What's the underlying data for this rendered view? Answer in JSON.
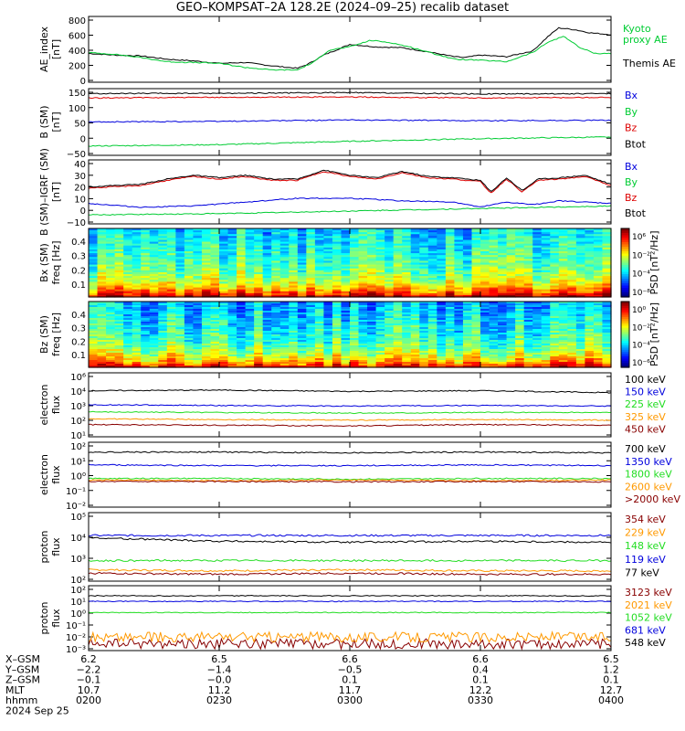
{
  "title": "GEO–KOMPSAT–2A 128.2E (2024–09–25) recalib dataset",
  "colors": {
    "black": "#000000",
    "red": "#dd0000",
    "green": "#00cc33",
    "blue": "#0000dd",
    "orange": "#ff9900",
    "darkred": "#880000",
    "bright_green": "#22dd22"
  },
  "chart_data": [
    {
      "id": "ae",
      "type": "line",
      "ylabel": [
        "AE_index",
        "[nT]"
      ],
      "ylim": [
        0,
        800
      ],
      "yticks": [
        "800",
        "600",
        "400",
        "200",
        "0"
      ],
      "series": [
        {
          "name": "Themis AE",
          "color": "black",
          "x": [
            0,
            0.05,
            0.1,
            0.15,
            0.2,
            0.25,
            0.3,
            0.35,
            0.4,
            0.42,
            0.45,
            0.5,
            0.55,
            0.6,
            0.65,
            0.7,
            0.72,
            0.75,
            0.8,
            0.85,
            0.88,
            0.9,
            0.93,
            0.96,
            1.0
          ],
          "values": [
            350,
            330,
            320,
            280,
            260,
            230,
            240,
            200,
            170,
            220,
            330,
            460,
            430,
            420,
            370,
            310,
            300,
            330,
            310,
            380,
            560,
            660,
            640,
            600,
            580
          ]
        },
        {
          "name": "Kyoto proxy AE",
          "color": "green",
          "x": [
            0,
            0.05,
            0.1,
            0.15,
            0.2,
            0.25,
            0.3,
            0.35,
            0.4,
            0.43,
            0.46,
            0.5,
            0.54,
            0.58,
            0.62,
            0.66,
            0.7,
            0.74,
            0.8,
            0.85,
            0.88,
            0.91,
            0.94,
            0.97,
            1.0
          ],
          "values": [
            360,
            340,
            300,
            250,
            240,
            230,
            180,
            150,
            150,
            240,
            390,
            430,
            510,
            480,
            420,
            350,
            280,
            270,
            250,
            360,
            490,
            560,
            420,
            350,
            350
          ]
        }
      ],
      "legend": [
        "Kyoto",
        "proxy AE",
        "Themis AE"
      ]
    },
    {
      "id": "b",
      "type": "line",
      "ylabel": [
        "B (SM)",
        "[nT]"
      ],
      "ylim": [
        -50,
        150
      ],
      "yticks": [
        "150",
        "100",
        "50",
        "0",
        "−50"
      ],
      "series": [
        {
          "name": "Bx",
          "color": "blue",
          "x": [
            0,
            0.25,
            0.5,
            0.75,
            1.0
          ],
          "values": [
            50,
            52,
            56,
            54,
            55
          ]
        },
        {
          "name": "By",
          "color": "green",
          "x": [
            0,
            0.25,
            0.5,
            0.75,
            1.0
          ],
          "values": [
            -22,
            -18,
            -8,
            0,
            5
          ]
        },
        {
          "name": "Bz",
          "color": "red",
          "x": [
            0,
            0.25,
            0.5,
            0.75,
            1.0
          ],
          "values": [
            122,
            124,
            125,
            122,
            124
          ]
        },
        {
          "name": "Btot",
          "color": "black",
          "x": [
            0,
            0.25,
            0.5,
            0.75,
            1.0
          ],
          "values": [
            135,
            136,
            138,
            134,
            135
          ]
        }
      ],
      "legend": [
        "Bx",
        "By",
        "Bz",
        "Btot"
      ]
    },
    {
      "id": "bd",
      "type": "line",
      "ylabel": [
        "B (SM)–IGRF (SM)",
        "[nT]"
      ],
      "ylim": [
        -10,
        40
      ],
      "yticks": [
        "40",
        "30",
        "20",
        "10",
        "0",
        "−10"
      ],
      "series": [
        {
          "name": "Bx",
          "color": "blue",
          "x": [
            0,
            0.1,
            0.2,
            0.3,
            0.4,
            0.5,
            0.6,
            0.7,
            0.75,
            0.8,
            0.85,
            0.9,
            1.0
          ],
          "values": [
            6,
            3,
            4,
            7,
            10,
            10,
            8,
            7,
            3,
            7,
            5,
            8,
            6
          ]
        },
        {
          "name": "By",
          "color": "green",
          "x": [
            0,
            0.25,
            0.5,
            0.75,
            1.0
          ],
          "values": [
            -3,
            -2,
            0,
            2,
            4
          ]
        },
        {
          "name": "Bz",
          "color": "red",
          "x": [
            0,
            0.05,
            0.1,
            0.15,
            0.2,
            0.25,
            0.3,
            0.35,
            0.4,
            0.45,
            0.5,
            0.55,
            0.6,
            0.65,
            0.7,
            0.75,
            0.77,
            0.8,
            0.83,
            0.86,
            0.9,
            0.95,
            1.0
          ],
          "values": [
            18,
            19,
            20,
            24,
            27,
            25,
            27,
            24,
            24,
            31,
            27,
            25,
            30,
            26,
            25,
            23,
            14,
            25,
            15,
            24,
            25,
            27,
            20
          ]
        },
        {
          "name": "Btot",
          "color": "black",
          "x": [
            0,
            0.05,
            0.1,
            0.15,
            0.2,
            0.25,
            0.3,
            0.35,
            0.4,
            0.45,
            0.5,
            0.55,
            0.6,
            0.65,
            0.7,
            0.75,
            0.77,
            0.8,
            0.83,
            0.86,
            0.9,
            0.95,
            1.0
          ],
          "values": [
            19,
            20,
            21,
            25,
            28,
            26,
            28,
            25,
            25,
            32,
            28,
            26,
            31,
            27,
            26,
            24,
            15,
            26,
            16,
            25,
            26,
            28,
            21
          ]
        }
      ],
      "legend": [
        "Bx",
        "By",
        "Bz",
        "Btot"
      ]
    },
    {
      "id": "bx_spec",
      "type": "heatmap",
      "ylabel": [
        "Bx (SM)",
        "freq [Hz]"
      ],
      "ylim": [
        0,
        0.5
      ],
      "yticks": [
        "0.4",
        "0.3",
        "0.2",
        "0.1"
      ],
      "colorbar": {
        "label": "PSD [nT²/Hz]",
        "ticks": [
          "10⁶",
          "10⁻²",
          "10⁻⁴",
          "10⁻⁸"
        ]
      }
    },
    {
      "id": "bz_spec",
      "type": "heatmap",
      "ylabel": [
        "Bz (SM)",
        "freq [Hz]"
      ],
      "ylim": [
        0,
        0.5
      ],
      "yticks": [
        "0.4",
        "0.3",
        "0.2",
        "0.1"
      ],
      "colorbar": {
        "label": "PSD [nT²/Hz]",
        "ticks": [
          "10⁰",
          "10⁻²",
          "10⁻⁴",
          "10⁻⁶"
        ]
      }
    },
    {
      "id": "ef1",
      "type": "line",
      "scale": "log",
      "ylabel": [
        "electron",
        "flux"
      ],
      "ylim_exp": [
        1,
        6
      ],
      "yticks": [
        "10⁶",
        "10⁴",
        "10³",
        "10²",
        "10¹"
      ],
      "series": [
        {
          "name": "100 keV",
          "color": "black",
          "x": [
            0,
            0.25,
            0.5,
            0.75,
            1.0
          ],
          "values": [
            4.6,
            4.65,
            4.55,
            4.6,
            4.45
          ]
        },
        {
          "name": "150 keV",
          "color": "blue",
          "x": [
            0,
            0.25,
            0.5,
            0.75,
            1.0
          ],
          "values": [
            3.5,
            3.45,
            3.4,
            3.45,
            3.4
          ]
        },
        {
          "name": "225 keV",
          "color": "bright_green",
          "x": [
            0,
            0.25,
            0.5,
            0.75,
            1.0
          ],
          "values": [
            2.95,
            2.9,
            2.85,
            2.9,
            2.9
          ]
        },
        {
          "name": "325 keV",
          "color": "orange",
          "x": [
            0,
            0.25,
            0.5,
            0.75,
            1.0
          ],
          "values": [
            2.4,
            2.35,
            2.3,
            2.35,
            2.3
          ]
        },
        {
          "name": "450 keV",
          "color": "darkred",
          "x": [
            0,
            0.25,
            0.5,
            0.75,
            1.0
          ],
          "values": [
            1.95,
            1.9,
            1.85,
            1.95,
            1.9
          ]
        }
      ],
      "legend": [
        "100 keV",
        "150 keV",
        "225 keV",
        "325 keV",
        "450 keV"
      ]
    },
    {
      "id": "ef2",
      "type": "line",
      "scale": "log",
      "ylabel": [
        "electron",
        "flux"
      ],
      "ylim_exp": [
        -2.3,
        2
      ],
      "yticks": [
        "10²",
        "10¹",
        "10⁰",
        "10⁻¹",
        "10⁻²"
      ],
      "series": [
        {
          "name": "700 keV",
          "color": "black",
          "x": [
            0,
            0.25,
            0.5,
            0.75,
            1.0
          ],
          "values": [
            1.35,
            1.35,
            1.3,
            1.35,
            1.3
          ]
        },
        {
          "name": "1350 keV",
          "color": "blue",
          "x": [
            0,
            0.25,
            0.5,
            0.75,
            1.0
          ],
          "values": [
            0.5,
            0.45,
            0.45,
            0.5,
            0.45
          ]
        },
        {
          "name": "1800 keV",
          "color": "bright_green",
          "x": [
            0,
            0.25,
            0.5,
            0.75,
            1.0
          ],
          "values": [
            -0.4,
            -0.4,
            -0.45,
            -0.4,
            -0.4
          ]
        },
        {
          "name": "2600 keV",
          "color": "orange",
          "x": [
            0,
            0.25,
            0.5,
            0.75,
            1.0
          ],
          "values": [
            -0.5,
            -0.55,
            -0.5,
            -0.55,
            -0.5
          ]
        },
        {
          "name": ">2000 keV",
          "color": "darkred",
          "x": [
            0,
            0.25,
            0.5,
            0.75,
            1.0
          ],
          "values": [
            -0.6,
            -0.6,
            -0.62,
            -0.6,
            -0.62
          ]
        }
      ],
      "legend": [
        "700 keV",
        "1350 keV",
        "1800 keV",
        "2600 keV",
        ">2000 keV"
      ]
    },
    {
      "id": "pf1",
      "type": "line",
      "scale": "log",
      "ylabel": [
        "proton",
        "flux"
      ],
      "ylim_exp": [
        2,
        5
      ],
      "yticks": [
        "10⁵",
        "10⁴",
        "10³",
        "10²"
      ],
      "series": [
        {
          "name": "354 keV",
          "color": "darkred",
          "x": [
            0,
            0.25,
            0.5,
            0.75,
            1.0
          ],
          "values": [
            2.35,
            2.3,
            2.35,
            2.3,
            2.3
          ]
        },
        {
          "name": "229 keV",
          "color": "orange",
          "x": [
            0,
            0.25,
            0.5,
            0.75,
            1.0
          ],
          "values": [
            2.5,
            2.45,
            2.5,
            2.45,
            2.45
          ]
        },
        {
          "name": "148 keV",
          "color": "bright_green",
          "x": [
            0,
            0.25,
            0.5,
            0.75,
            1.0
          ],
          "values": [
            2.9,
            2.9,
            2.9,
            2.9,
            2.9
          ]
        },
        {
          "name": "119 keV",
          "color": "blue",
          "x": [
            0,
            0.25,
            0.5,
            0.75,
            1.0
          ],
          "values": [
            4.0,
            4.0,
            4.0,
            4.0,
            4.0
          ]
        },
        {
          "name": "77 keV",
          "color": "black",
          "x": [
            0,
            0.25,
            0.5,
            0.75,
            1.0
          ],
          "values": [
            3.9,
            3.75,
            3.7,
            3.75,
            3.7
          ]
        }
      ],
      "legend": [
        "354 keV",
        "229 keV",
        "148 keV",
        "119 keV",
        "77 keV"
      ]
    },
    {
      "id": "pf2",
      "type": "line",
      "scale": "log",
      "ylabel": [
        "proton",
        "flux"
      ],
      "ylim_exp": [
        -3.6,
        2.2
      ],
      "yticks": [
        "10²",
        "10¹",
        "10⁰",
        "10⁻¹",
        "10⁻²",
        "10⁻³"
      ],
      "series": [
        {
          "name": "3123 keV",
          "color": "darkred",
          "x": [
            0,
            0.25,
            0.5,
            0.75,
            1.0
          ],
          "values": [
            -3.0,
            -3.0,
            -3.0,
            -3.0,
            -3.0
          ]
        },
        {
          "name": "2021 keV",
          "color": "orange",
          "x": [
            0,
            0.25,
            0.5,
            0.75,
            1.0
          ],
          "values": [
            -2.4,
            -2.4,
            -2.4,
            -2.4,
            -2.4
          ]
        },
        {
          "name": "1052 keV",
          "color": "bright_green",
          "x": [
            0,
            0.25,
            0.5,
            0.75,
            1.0
          ],
          "values": [
            -0.2,
            -0.2,
            -0.2,
            -0.2,
            -0.2
          ]
        },
        {
          "name": "681 keV",
          "color": "blue",
          "x": [
            0,
            0.25,
            0.5,
            0.75,
            1.0
          ],
          "values": [
            0.8,
            0.8,
            0.8,
            0.8,
            0.8
          ]
        },
        {
          "name": "548 keV",
          "color": "black",
          "x": [
            0,
            0.25,
            0.5,
            0.75,
            1.0
          ],
          "values": [
            1.3,
            1.3,
            1.3,
            1.3,
            1.3
          ]
        }
      ],
      "legend": [
        "3123 keV",
        "2021 keV",
        "1052 keV",
        "681 keV",
        "548 keV"
      ]
    }
  ],
  "footer": {
    "labels": [
      "X–GSM",
      "Y–GSM",
      "Z–GSM",
      "MLT",
      "hhmm",
      "2024 Sep 25"
    ],
    "columns": [
      [
        "6.2",
        "−2.2",
        "−0.1",
        "10.7",
        "0200"
      ],
      [
        "6.5",
        "−1.4",
        "−0.0",
        "11.2",
        "0230"
      ],
      [
        "6.6",
        "−0.5",
        "0.1",
        "11.7",
        "0300"
      ],
      [
        "6.6",
        "0.4",
        "0.1",
        "12.2",
        "0330"
      ],
      [
        "6.5",
        "1.2",
        "0.1",
        "12.7",
        "0400"
      ]
    ]
  }
}
